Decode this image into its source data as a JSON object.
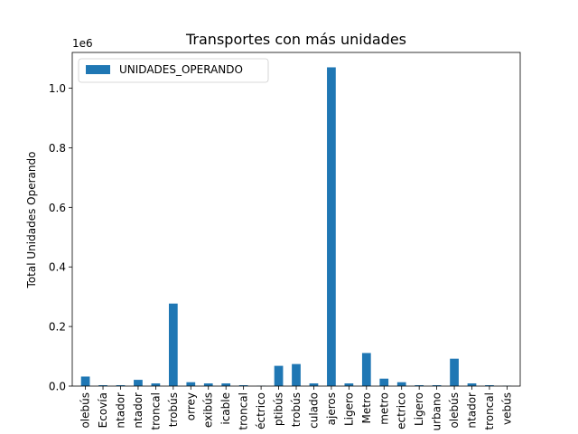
{
  "chart_data": {
    "type": "bar",
    "title": "Transportes con más unidades",
    "xlabel": "",
    "ylabel": "Total Unidades Operando",
    "y_multiplier_label": "1e6",
    "ylim": [
      0,
      1.12
    ],
    "yticks": [
      0.0,
      0.2,
      0.4,
      0.6,
      0.8,
      1.0
    ],
    "ytick_labels": [
      "0.0",
      "0.2",
      "0.4",
      "0.6",
      "0.8",
      "1.0"
    ],
    "legend_position": "top-left",
    "grid": false,
    "bar_color": "#1f77b4",
    "categories": [
      "olebús",
      "Ecovía",
      "ntador",
      "ntador",
      "troncal",
      "trobús",
      "orrey",
      "exibús",
      "icable",
      "troncal",
      "éctrico",
      "ptibús",
      "trobús",
      "culado",
      "ajeros",
      "Ligero",
      "Metro",
      "metro",
      "ectrico",
      "Ligero",
      "urbano",
      "olebús",
      "ntador",
      "troncal",
      "vebús"
    ],
    "series": [
      {
        "name": "UNIDADES_OPERANDO",
        "values": [
          0.032,
          0.003,
          0.003,
          0.021,
          0.009,
          0.277,
          0.013,
          0.009,
          0.009,
          0.003,
          0.001,
          0.068,
          0.074,
          0.009,
          1.07,
          0.009,
          0.111,
          0.025,
          0.013,
          0.003,
          0.003,
          0.092,
          0.009,
          0.003,
          0.001
        ]
      }
    ]
  }
}
